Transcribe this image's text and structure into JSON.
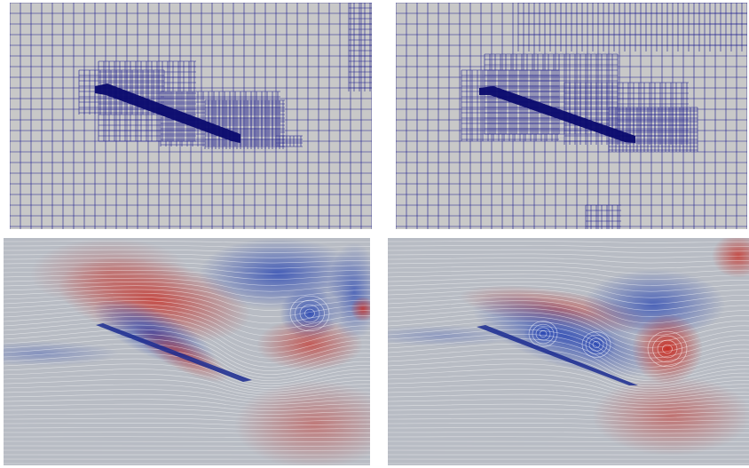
{
  "figure": {
    "panels": [
      {
        "id": "mesh-left",
        "kind": "adaptive-mesh",
        "description_color": "#c8c8c8",
        "line_color": "#1a1a8c"
      },
      {
        "id": "mesh-right",
        "kind": "adaptive-mesh",
        "description_color": "#c8c8c8",
        "line_color": "#1a1a8c"
      },
      {
        "id": "flow-left",
        "kind": "vorticity-streamlines"
      },
      {
        "id": "flow-right",
        "kind": "vorticity-streamlines"
      }
    ],
    "colors": {
      "background_gray": "#c8c8c8",
      "mesh_blue": "#1a1a8c",
      "plate_navy": "#0a0a6e",
      "vort_red": "#c8281e",
      "vort_blue": "#2846b4",
      "neutral": "#b8bcc4"
    }
  }
}
